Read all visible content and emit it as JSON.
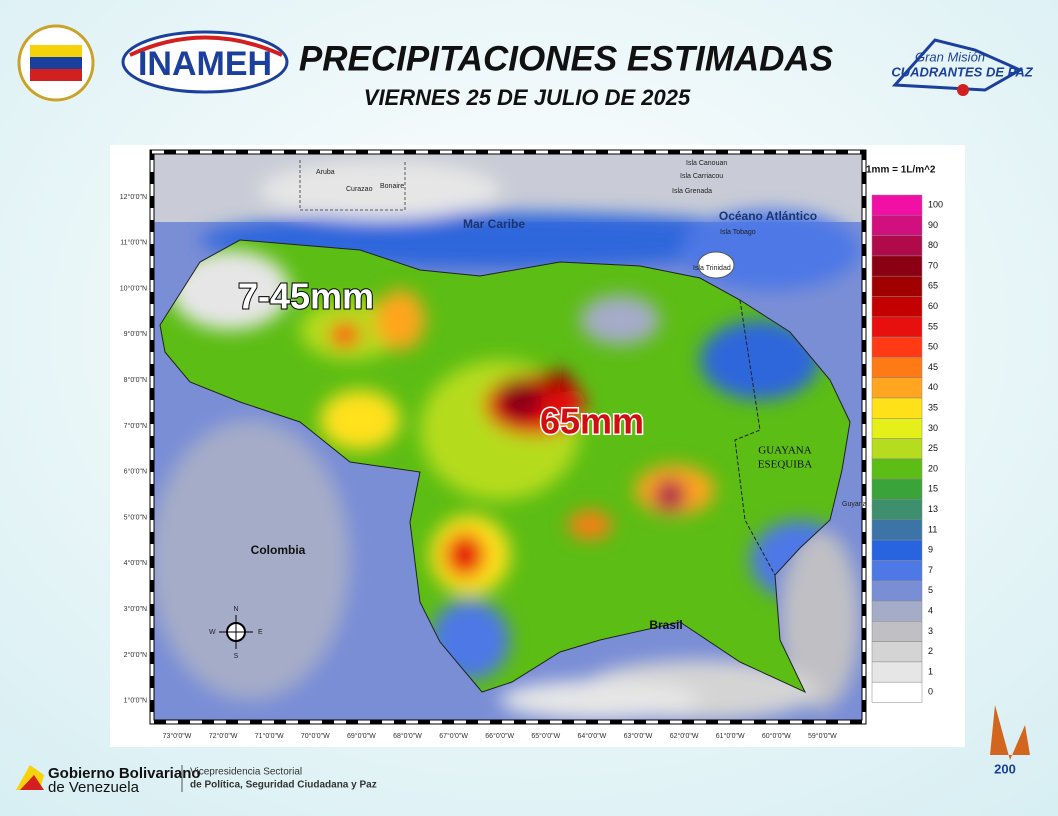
{
  "header": {
    "title": "PRECIPITACIONES ESTIMADAS",
    "date": "VIERNES 25 DE JULIO DE 2025",
    "logo_left": "INAMEH",
    "logo_right_top": "Gran Misión",
    "logo_right_bottom": "CUADRANTES DE PAZ"
  },
  "map": {
    "unit_note": "1mm = 1L/m^2",
    "lat_labels": [
      "12°0'0\"N",
      "11°0'0\"N",
      "10°0'0\"N",
      "9°0'0\"N",
      "8°0'0\"N",
      "7°0'0\"N",
      "6°0'0\"N",
      "5°0'0\"N",
      "4°0'0\"N",
      "3°0'0\"N",
      "2°0'0\"N",
      "1°0'0\"N"
    ],
    "lon_labels": [
      "73°0'0\"W",
      "72°0'0\"W",
      "71°0'0\"W",
      "70°0'0\"W",
      "69°0'0\"W",
      "68°0'0\"W",
      "67°0'0\"W",
      "66°0'0\"W",
      "65°0'0\"W",
      "64°0'0\"W",
      "63°0'0\"W",
      "62°0'0\"W",
      "61°0'0\"W",
      "60°0'0\"W",
      "59°0'0\"W"
    ],
    "places": {
      "sea_caribe": "Mar Caribe",
      "ocean": "Océano Atlántico",
      "colombia": "Colombia",
      "brasil": "Brasil",
      "guayana": "GUAYANA",
      "esequiba": "ESEQUIBA",
      "guyana": "Guyana",
      "aruba": "Aruba",
      "curazao": "Curazao",
      "bonaire": "Bonaire",
      "canouan": "Isla Canouan",
      "carriacou": "Isla Carriacou",
      "grenada": "Isla Grenada",
      "tobago": "Isla Tobago",
      "trinidad": "Isla Trinidad"
    },
    "annotations": {
      "west": "7-45mm",
      "center": "65mm"
    },
    "compass": {
      "n": "N",
      "s": "S",
      "e": "E",
      "w": "W"
    }
  },
  "legend": {
    "levels": [
      {
        "label": 100,
        "color": "#f20fa6"
      },
      {
        "label": 90,
        "color": "#d10f7f"
      },
      {
        "label": 80,
        "color": "#b00a4b"
      },
      {
        "label": 70,
        "color": "#8c0014"
      },
      {
        "label": 65,
        "color": "#a10000"
      },
      {
        "label": 60,
        "color": "#c40000"
      },
      {
        "label": 55,
        "color": "#e80f0f"
      },
      {
        "label": 50,
        "color": "#ff3a14"
      },
      {
        "label": 45,
        "color": "#ff7a14"
      },
      {
        "label": 40,
        "color": "#ffa51f"
      },
      {
        "label": 35,
        "color": "#ffe11a"
      },
      {
        "label": 30,
        "color": "#e5f01a"
      },
      {
        "label": 25,
        "color": "#b5dc1f"
      },
      {
        "label": 20,
        "color": "#5cbd14"
      },
      {
        "label": 15,
        "color": "#3aa43a"
      },
      {
        "label": 13,
        "color": "#3d8f6e"
      },
      {
        "label": 11,
        "color": "#3d74a8"
      },
      {
        "label": 9,
        "color": "#2864e0"
      },
      {
        "label": 7,
        "color": "#4e78e6"
      },
      {
        "label": 5,
        "color": "#7a8ed6"
      },
      {
        "label": 4,
        "color": "#a4acc8"
      },
      {
        "label": 3,
        "color": "#bfbfc4"
      },
      {
        "label": 2,
        "color": "#d4d4d4"
      },
      {
        "label": 1,
        "color": "#e6e6e6"
      },
      {
        "label": 0,
        "color": "#ffffff"
      }
    ]
  },
  "footer": {
    "gov_top": "Gobierno Bolivariano",
    "gov_bottom": "de Venezuela",
    "vice_top": "Vicepresidencia Sectorial",
    "vice_bottom": "de Política, Seguridad Ciudadana y Paz",
    "bicentennial": "200"
  }
}
